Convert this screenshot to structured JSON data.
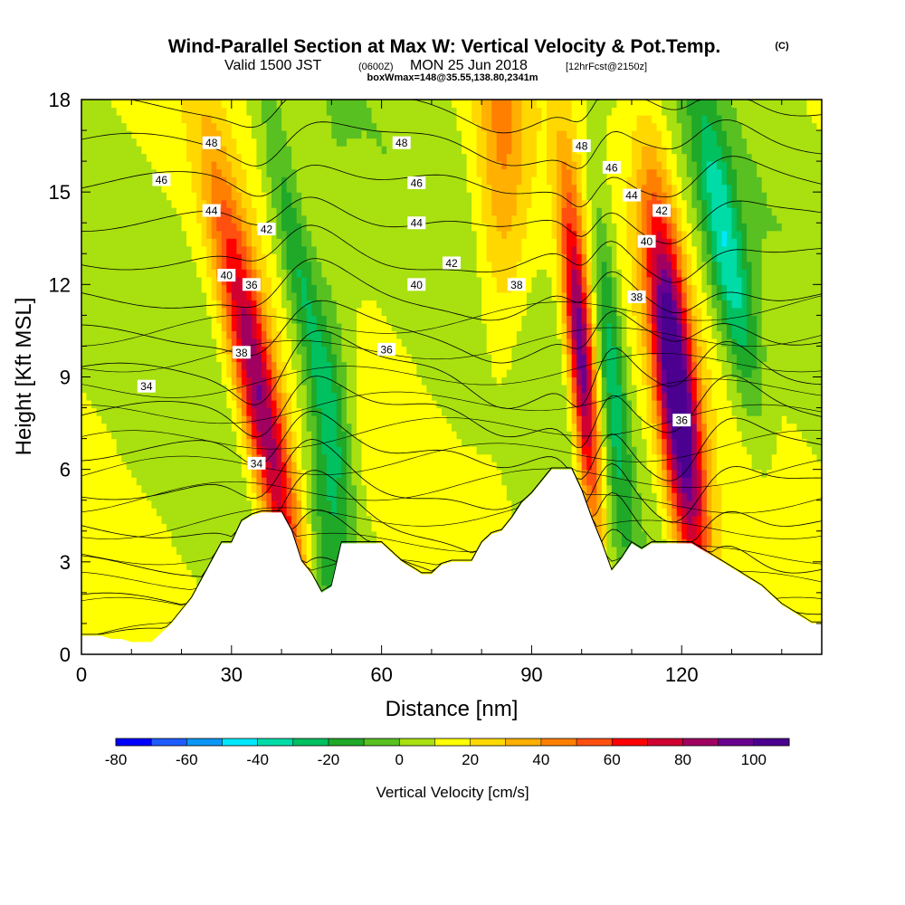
{
  "header": {
    "title": "Wind-Parallel Section at Max W: Vertical Velocity & Pot.Temp.",
    "copyright": "(C)",
    "valid_prefix": "Valid 1500 JST",
    "valid_z": "(0600Z)",
    "valid_date": "MON 25 Jun 2018",
    "valid_fcst": "[12hrFcst@2150z]",
    "box_info": "boxWmax=148@35.55,138.80,2341m"
  },
  "chart_data": {
    "type": "heatmap",
    "title": "Wind-Parallel Section at Max W: Vertical Velocity & Pot.Temp.",
    "xlabel": "Distance [nm]",
    "ylabel": "Height [Kft MSL]",
    "xlim": [
      0,
      148
    ],
    "ylim": [
      0,
      18
    ],
    "xticks": [
      0,
      30,
      60,
      90,
      120
    ],
    "yticks": [
      0,
      3,
      6,
      9,
      12,
      15,
      18
    ],
    "colorbar": {
      "label": "Vertical Velocity [cm/s]",
      "levels": [
        -80,
        -70,
        -60,
        -50,
        -40,
        -30,
        -20,
        -10,
        0,
        10,
        20,
        30,
        40,
        50,
        60,
        70,
        80,
        90,
        100,
        110
      ],
      "tick_values": [
        -80,
        -60,
        -40,
        -20,
        0,
        20,
        40,
        60,
        80,
        100
      ],
      "colors": [
        "#0000ff",
        "#1e5cff",
        "#0a96f5",
        "#00e8ff",
        "#00dca8",
        "#00c060",
        "#20a828",
        "#58c020",
        "#a8e010",
        "#ffff00",
        "#ffd800",
        "#ffb000",
        "#ff8000",
        "#ff5010",
        "#ff0000",
        "#d00030",
        "#a00060",
        "#6a0090",
        "#4b0090"
      ]
    },
    "terrain_kft": [
      [
        0,
        0.6
      ],
      [
        2,
        0.6
      ],
      [
        4,
        0.6
      ],
      [
        6,
        0.5
      ],
      [
        8,
        0.5
      ],
      [
        10,
        0.4
      ],
      [
        12,
        0.4
      ],
      [
        14,
        0.4
      ],
      [
        16,
        0.7
      ],
      [
        18,
        1.0
      ],
      [
        20,
        1.4
      ],
      [
        22,
        1.8
      ],
      [
        24,
        2.4
      ],
      [
        26,
        3.0
      ],
      [
        28,
        3.6
      ],
      [
        30,
        3.6
      ],
      [
        32,
        4.3
      ],
      [
        34,
        4.5
      ],
      [
        36,
        4.6
      ],
      [
        38,
        4.6
      ],
      [
        40,
        4.6
      ],
      [
        42,
        4.0
      ],
      [
        44,
        3.0
      ],
      [
        46,
        2.6
      ],
      [
        48,
        2.0
      ],
      [
        50,
        2.2
      ],
      [
        52,
        3.6
      ],
      [
        54,
        3.6
      ],
      [
        56,
        3.6
      ],
      [
        58,
        3.6
      ],
      [
        60,
        3.6
      ],
      [
        62,
        3.3
      ],
      [
        64,
        3.0
      ],
      [
        66,
        2.8
      ],
      [
        68,
        2.6
      ],
      [
        70,
        2.6
      ],
      [
        72,
        2.9
      ],
      [
        74,
        3.0
      ],
      [
        76,
        3.0
      ],
      [
        78,
        3.0
      ],
      [
        80,
        3.6
      ],
      [
        82,
        3.9
      ],
      [
        84,
        4.0
      ],
      [
        86,
        4.4
      ],
      [
        88,
        4.9
      ],
      [
        90,
        5.2
      ],
      [
        92,
        5.6
      ],
      [
        94,
        6.0
      ],
      [
        96,
        6.0
      ],
      [
        98,
        6.0
      ],
      [
        100,
        5.3
      ],
      [
        102,
        4.4
      ],
      [
        104,
        3.6
      ],
      [
        106,
        2.7
      ],
      [
        108,
        3.1
      ],
      [
        110,
        3.6
      ],
      [
        112,
        3.4
      ],
      [
        114,
        3.6
      ],
      [
        116,
        3.6
      ],
      [
        118,
        3.6
      ],
      [
        120,
        3.6
      ],
      [
        122,
        3.6
      ],
      [
        124,
        3.4
      ],
      [
        126,
        3.2
      ],
      [
        128,
        3.0
      ],
      [
        130,
        2.8
      ],
      [
        132,
        2.6
      ],
      [
        134,
        2.4
      ],
      [
        136,
        2.2
      ],
      [
        138,
        1.9
      ],
      [
        140,
        1.6
      ],
      [
        142,
        1.4
      ],
      [
        144,
        1.2
      ],
      [
        146,
        1.0
      ],
      [
        148,
        1.0
      ]
    ],
    "w_features": [
      {
        "x0": 36,
        "h0": 8.0,
        "lean": -7.0,
        "w": 2.8,
        "a": 85,
        "sx": 0.45,
        "sy": 0.5
      },
      {
        "x0": 44,
        "h0": 12.0,
        "lean": -7.0,
        "w": 3.2,
        "a": -35,
        "sx": 0.9,
        "sy": 0.9
      },
      {
        "x0": 50,
        "h0": 6.0,
        "lean": 0.0,
        "w": 4.0,
        "a": -25,
        "sx": 0.9,
        "sy": 0.5
      },
      {
        "x0": 84,
        "h0": 16.5,
        "lean": 0.0,
        "w": 4.0,
        "a": 30,
        "sx": 0.6,
        "sy": 0.5
      },
      {
        "x0": 100,
        "h0": 9.5,
        "lean": -3.0,
        "w": 1.6,
        "a": 90,
        "sx": 0.4,
        "sy": 0.8
      },
      {
        "x0": 106,
        "h0": 9.5,
        "lean": -3.0,
        "w": 2.0,
        "a": -35,
        "sx": 0.6,
        "sy": 0.8
      },
      {
        "x0": 119,
        "h0": 8.5,
        "lean": -4.0,
        "w": 2.8,
        "a": 110,
        "sx": 0.5,
        "sy": 0.6
      },
      {
        "x0": 129,
        "h0": 13.0,
        "lean": -6.0,
        "w": 3.6,
        "a": -45,
        "sx": 0.9,
        "sy": 1.0
      }
    ],
    "theta_levels": [
      34,
      35,
      36,
      37,
      38,
      39,
      40,
      41,
      42,
      43,
      44,
      45,
      46,
      47,
      48
    ],
    "theta_labels": [
      {
        "text": "48",
        "x": 26,
        "y": 16.6
      },
      {
        "text": "48",
        "x": 64,
        "y": 16.6
      },
      {
        "text": "48",
        "x": 100,
        "y": 16.5
      },
      {
        "text": "46",
        "x": 16,
        "y": 15.4
      },
      {
        "text": "46",
        "x": 67,
        "y": 15.3
      },
      {
        "text": "46",
        "x": 106,
        "y": 15.8
      },
      {
        "text": "44",
        "x": 26,
        "y": 14.4
      },
      {
        "text": "44",
        "x": 67,
        "y": 14.0
      },
      {
        "text": "44",
        "x": 110,
        "y": 14.9
      },
      {
        "text": "42",
        "x": 37,
        "y": 13.8
      },
      {
        "text": "42",
        "x": 74,
        "y": 12.7
      },
      {
        "text": "42",
        "x": 116,
        "y": 14.4
      },
      {
        "text": "40",
        "x": 29,
        "y": 12.3
      },
      {
        "text": "40",
        "x": 67,
        "y": 12.0
      },
      {
        "text": "40",
        "x": 113,
        "y": 13.4
      },
      {
        "text": "38",
        "x": 87,
        "y": 12.0
      },
      {
        "text": "38",
        "x": 111,
        "y": 11.6
      },
      {
        "text": "38",
        "x": 32,
        "y": 9.8
      },
      {
        "text": "36",
        "x": 34,
        "y": 12.0
      },
      {
        "text": "36",
        "x": 61,
        "y": 9.9
      },
      {
        "text": "36",
        "x": 120,
        "y": 7.6
      },
      {
        "text": "34",
        "x": 13,
        "y": 8.7
      },
      {
        "text": "34",
        "x": 35,
        "y": 6.2
      }
    ]
  }
}
